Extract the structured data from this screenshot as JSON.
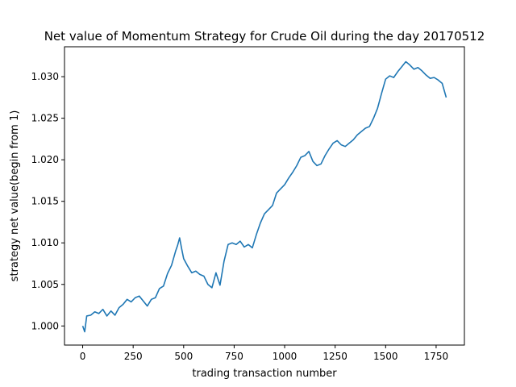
{
  "chart_data": {
    "type": "line",
    "title": "Net value of Momentum Strategy for Crude Oil during the day 20170512",
    "xlabel": "trading transaction number",
    "ylabel": "strategy net value(begin from 1)",
    "xlim": [
      -90,
      1890
    ],
    "ylim": [
      0.9977,
      1.0336
    ],
    "xticks": [
      0,
      250,
      500,
      750,
      1000,
      1250,
      1500,
      1750
    ],
    "yticks": [
      1.0,
      1.005,
      1.01,
      1.015,
      1.02,
      1.025,
      1.03
    ],
    "xtick_labels": [
      "0",
      "250",
      "500",
      "750",
      "1000",
      "1250",
      "1500",
      "1750"
    ],
    "ytick_labels": [
      "1.000",
      "1.005",
      "1.010",
      "1.015",
      "1.020",
      "1.025",
      "1.030"
    ],
    "grid": false,
    "line_color": "#1f77b4",
    "series": [
      {
        "x": [
          0,
          10,
          20,
          40,
          60,
          80,
          100,
          120,
          140,
          160,
          180,
          200,
          220,
          240,
          260,
          280,
          300,
          320,
          340,
          360,
          380,
          400,
          420,
          440,
          460,
          470,
          480,
          490,
          500,
          520,
          540,
          560,
          580,
          600,
          620,
          640,
          660,
          680,
          700,
          720,
          740,
          760,
          780,
          800,
          820,
          840,
          860,
          880,
          900,
          920,
          940,
          960,
          980,
          1000,
          1020,
          1040,
          1060,
          1080,
          1100,
          1120,
          1140,
          1160,
          1180,
          1200,
          1220,
          1240,
          1260,
          1280,
          1300,
          1320,
          1340,
          1360,
          1380,
          1400,
          1420,
          1440,
          1460,
          1480,
          1500,
          1520,
          1540,
          1560,
          1580,
          1600,
          1620,
          1640,
          1660,
          1680,
          1700,
          1720,
          1740,
          1760,
          1780,
          1800
        ],
        "y": [
          1.0,
          0.9993,
          1.0012,
          1.0013,
          1.0017,
          1.0015,
          1.002,
          1.0012,
          1.0018,
          1.0013,
          1.0022,
          1.0026,
          1.0032,
          1.0029,
          1.0034,
          1.0036,
          1.003,
          1.0024,
          1.0032,
          1.0034,
          1.0045,
          1.0048,
          1.0063,
          1.0073,
          1.009,
          1.0097,
          1.0106,
          1.0093,
          1.0081,
          1.0072,
          1.0064,
          1.0066,
          1.0062,
          1.006,
          1.005,
          1.0046,
          1.0064,
          1.0049,
          1.0078,
          1.0098,
          1.01,
          1.0098,
          1.0102,
          1.0095,
          1.0098,
          1.0094,
          1.011,
          1.0124,
          1.0135,
          1.014,
          1.0145,
          1.016,
          1.0165,
          1.017,
          1.0178,
          1.0185,
          1.0193,
          1.0203,
          1.0205,
          1.021,
          1.0198,
          1.0193,
          1.0195,
          1.0205,
          1.0213,
          1.022,
          1.0223,
          1.0218,
          1.0216,
          1.022,
          1.0224,
          1.023,
          1.0234,
          1.0238,
          1.024,
          1.025,
          1.0262,
          1.028,
          1.0297,
          1.0301,
          1.0299,
          1.0306,
          1.0312,
          1.0318,
          1.0314,
          1.0309,
          1.0311,
          1.0307,
          1.0302,
          1.0298,
          1.0299,
          1.0296,
          1.0292,
          1.0275
        ]
      }
    ]
  }
}
